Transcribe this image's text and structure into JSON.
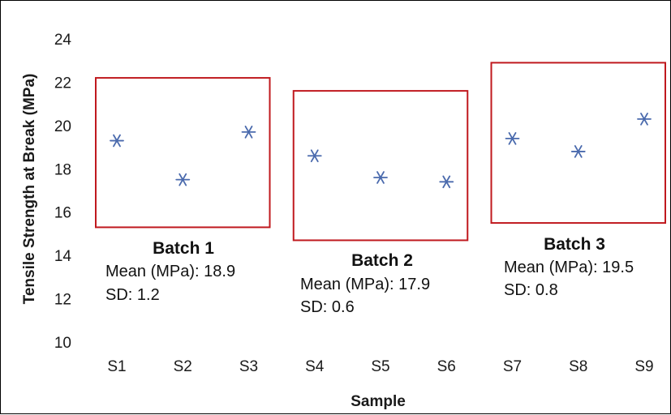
{
  "chart_data": {
    "type": "scatter",
    "xlabel": "Sample",
    "ylabel": "Tensile Strength at Break (MPa)",
    "ylim": [
      10,
      24
    ],
    "yticks": [
      10,
      12,
      14,
      16,
      18,
      20,
      22,
      24
    ],
    "grid": false,
    "categories": [
      "S1",
      "S2",
      "S3",
      "S4",
      "S5",
      "S6",
      "S7",
      "S8",
      "S9"
    ],
    "values": [
      19.3,
      17.5,
      19.7,
      18.6,
      17.6,
      17.4,
      19.4,
      18.8,
      20.3
    ],
    "marker_color": "#4a6aad",
    "box_color": "#c0191e",
    "batches": [
      {
        "name": "Batch 1",
        "mean_label": "Mean (MPa): 18.9",
        "sd_label": "SD: 1.2",
        "samples": [
          "S1",
          "S2",
          "S3"
        ],
        "box_y_range": [
          15.3,
          22.2
        ]
      },
      {
        "name": "Batch 2",
        "mean_label": "Mean (MPa): 17.9",
        "sd_label": "SD: 0.6",
        "samples": [
          "S4",
          "S5",
          "S6"
        ],
        "box_y_range": [
          14.7,
          21.6
        ]
      },
      {
        "name": "Batch 3",
        "mean_label": "Mean (MPa): 19.5",
        "sd_label": "SD: 0.8",
        "samples": [
          "S7",
          "S8",
          "S9"
        ],
        "box_y_range": [
          15.5,
          22.9
        ]
      }
    ]
  }
}
